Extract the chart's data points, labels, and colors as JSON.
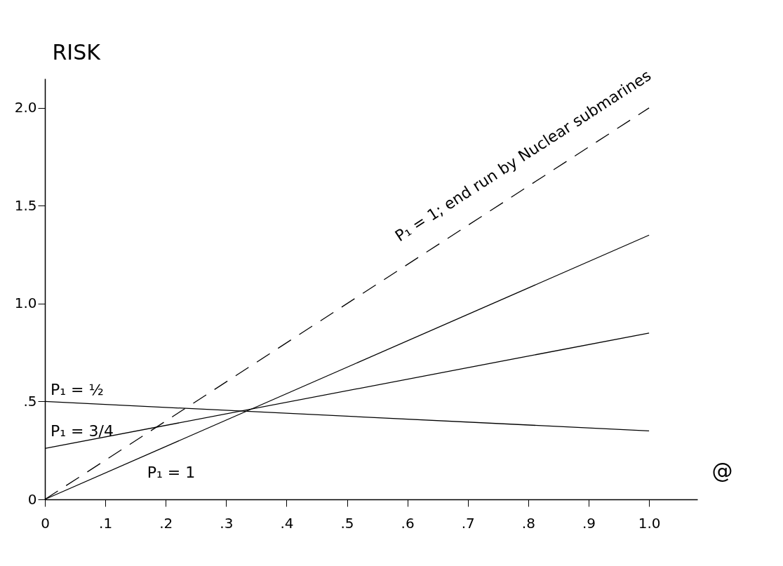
{
  "chart_data": {
    "type": "line",
    "ylabel": "RISK",
    "xlabel": "@",
    "x": [
      0,
      1
    ],
    "series": [
      {
        "name": "P₁ = ½",
        "color": "#000000",
        "values": [
          0.5,
          0.35
        ],
        "line_style": "solid"
      },
      {
        "name": "P₁ = 3/4",
        "color": "#000000",
        "values": [
          0.26,
          0.85
        ],
        "line_style": "solid"
      },
      {
        "name": "P₁ = 1",
        "color": "#000000",
        "values": [
          0,
          1.35
        ],
        "line_style": "solid"
      },
      {
        "name": "P₁ = 1; end run by Nuclear submarines",
        "color": "#000000",
        "values": [
          0,
          2.0
        ],
        "line_style": "dashed"
      }
    ],
    "xlim": [
      0,
      1.08
    ],
    "ylim": [
      0,
      2.15
    ],
    "xticks": [
      0,
      {
        "value": 0.1,
        "label": ".1"
      },
      {
        "value": 0.2,
        "label": ".2"
      },
      {
        "value": 0.3,
        "label": ".3"
      },
      {
        "value": 0.4,
        "label": ".4"
      },
      {
        "value": 0.5,
        "label": ".5"
      },
      {
        "value": 0.6,
        "label": ".6"
      },
      {
        "value": 0.7,
        "label": ".7"
      },
      {
        "value": 0.8,
        "label": ".8"
      },
      {
        "value": 0.9,
        "label": ".9"
      },
      {
        "value": 1.0,
        "label": "1.0"
      }
    ],
    "yticks": [
      0,
      {
        "value": 0.5,
        "label": ".5"
      },
      {
        "value": 1.0,
        "label": "1.0"
      },
      {
        "value": 1.5,
        "label": "1.5"
      },
      {
        "value": 2.0,
        "label": "2.0"
      }
    ],
    "grid": false,
    "legend": false,
    "marker": "none"
  }
}
